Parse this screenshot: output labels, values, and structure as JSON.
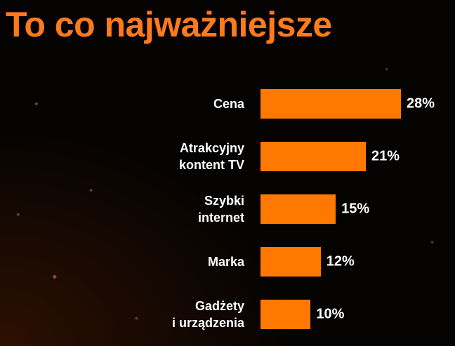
{
  "chart_data": {
    "type": "bar",
    "orientation": "horizontal",
    "title": "To co najważniejsze",
    "categories": [
      "Cena",
      "Atrakcyjny\nkontent TV",
      "Szybki\ninternet",
      "Marka",
      "Gadżety\ni urządzenia"
    ],
    "values": [
      28,
      21,
      15,
      12,
      10
    ],
    "value_labels": [
      "28%",
      "21%",
      "15%",
      "12%",
      "10%"
    ],
    "color": "#ff7900"
  }
}
